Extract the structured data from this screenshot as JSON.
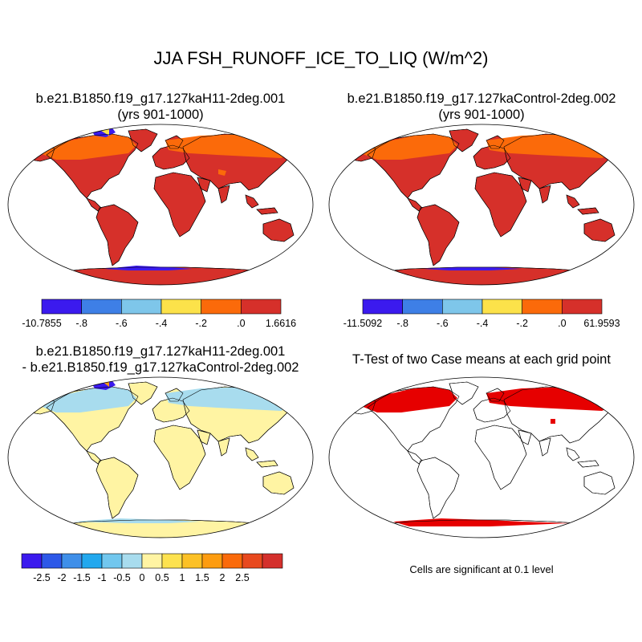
{
  "title": "JJA FSH_RUNOFF_ICE_TO_LIQ (W/m^2)",
  "panels": [
    {
      "id": "case1",
      "title": "b.e21.B1850.f19_g17.127kaH11-2deg.001",
      "subtitle": "(yrs 901-1000)",
      "colorbar": {
        "colors": [
          "#3b1aee",
          "#3e7fe6",
          "#7ec6ea",
          "#fce24a",
          "#fb6a0a",
          "#d6302a"
        ],
        "labels": [
          "-10.7855",
          "-.8",
          "-.6",
          "-.4",
          "-.2",
          ".0",
          "1.6616"
        ]
      }
    },
    {
      "id": "case2",
      "title": "b.e21.B1850.f19_g17.127kaControl-2deg.002",
      "subtitle": "(yrs 901-1000)",
      "colorbar": {
        "colors": [
          "#3b1aee",
          "#3e7fe6",
          "#7ec6ea",
          "#fce24a",
          "#fb6a0a",
          "#d6302a"
        ],
        "labels": [
          "-11.5092",
          "-.8",
          "-.6",
          "-.4",
          "-.2",
          ".0",
          "61.9593"
        ]
      }
    },
    {
      "id": "diff",
      "title_line1": "b.e21.B1850.f19_g17.127kaH11-2deg.001",
      "title_line2": "- b.e21.B1850.f19_g17.127kaControl-2deg.002",
      "colorbar": {
        "colors": [
          "#3b1aee",
          "#2d58e8",
          "#3f8fe9",
          "#22a8ee",
          "#71c7ee",
          "#a8dcee",
          "#fff4a3",
          "#fde24f",
          "#fcc126",
          "#fd9c10",
          "#fa6a0a",
          "#e8491e",
          "#d4302c"
        ],
        "labels": [
          "-2.5",
          "-2",
          "-1.5",
          "-1",
          "-0.5",
          "0",
          "0.5",
          "1",
          "1.5",
          "2",
          "2.5"
        ]
      }
    },
    {
      "id": "ttest",
      "title": "T-Test of two Case means at each grid point",
      "note": "Cells are significant at 0.1 level",
      "sig_color": "#e60000"
    }
  ]
}
